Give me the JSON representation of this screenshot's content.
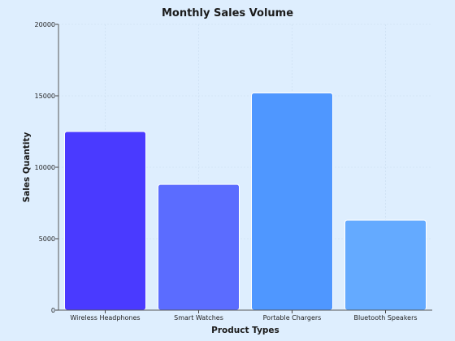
{
  "chart_data": {
    "type": "bar",
    "title": "Monthly Sales Volume",
    "xlabel": "Product Types",
    "ylabel": "Sales Quantity",
    "categories": [
      "Wireless Headphones",
      "Smart Watches",
      "Portable Chargers",
      "Bluetooth Speakers"
    ],
    "values": [
      12500,
      8800,
      15200,
      6300
    ],
    "ylim": [
      0,
      20000
    ],
    "yticks": [
      0,
      5000,
      10000,
      15000,
      20000
    ],
    "grid": true,
    "legend": "none",
    "bar_colors": [
      "#4a3aff",
      "#5b6cff",
      "#4f97ff",
      "#64aaff"
    ]
  }
}
